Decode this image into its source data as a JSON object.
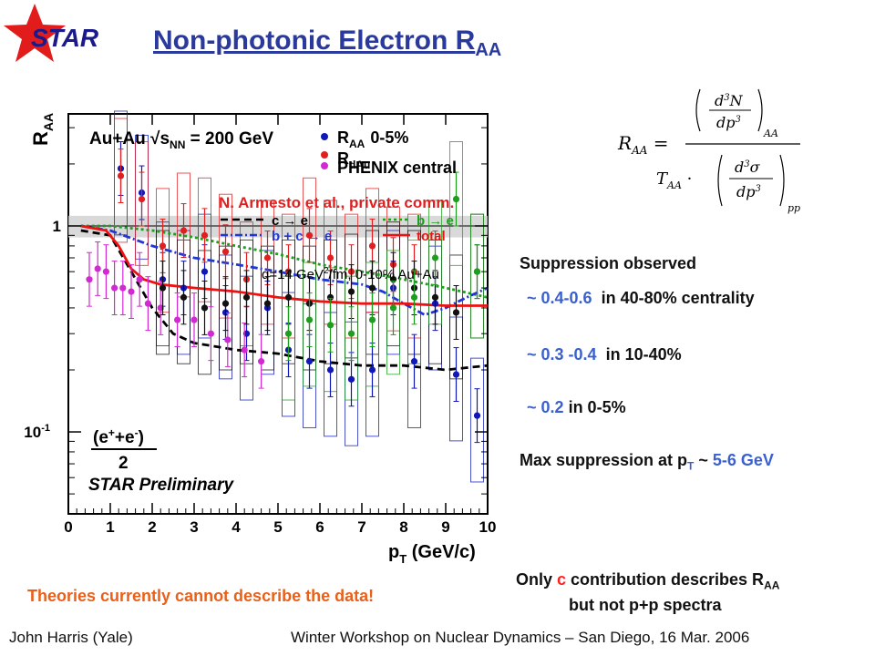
{
  "slide": {
    "logo": "STAR",
    "title": "Non-photonic Electron R",
    "title_sub": "AA"
  },
  "formula": {
    "lhs": "R",
    "lhs_sub": "AA",
    "num_d": "d",
    "num_sup": "3",
    "num_var": "N",
    "num_dp": "dp",
    "num_dp_sup": "3",
    "num_sub": "AA",
    "den_T": "T",
    "den_T_sub": "AA",
    "den_d": "d",
    "den_sup": "3",
    "den_var": "σ",
    "den_dp": "dp",
    "den_dp_sup": "3",
    "den_sub": "pp"
  },
  "notes": {
    "suppression": "Suppression observed",
    "line1_value": "~ 0.4-0.6",
    "line1_text": "in 40-80% centrality",
    "line2_value": "~ 0.3 -0.4",
    "line2_text": "in 10-40%",
    "line3_value": "~ 0.2",
    "line3_text": "in 0-5%",
    "max_prefix": "Max suppression at p",
    "max_sub": "T",
    "max_mid": " ~ ",
    "max_value": "5-6 GeV",
    "only_prefix": "Only ",
    "only_c": "c",
    "only_suffix": " contribution describes R",
    "only_sub": "AA",
    "only_line2": "but not p+p spectra",
    "theory": "Theories currently cannot describe the data!"
  },
  "footer": {
    "left": "John Harris (Yale)",
    "right": "Winter Workshop on Nuclear Dynamics – San Diego, 16 Mar. 2006"
  },
  "chart_data": {
    "type": "scatter",
    "y_scale": "log",
    "xlim": [
      0,
      10
    ],
    "ylim": [
      0.04,
      3.5
    ],
    "x_ticks": [
      "0",
      "1",
      "2",
      "3",
      "4",
      "5",
      "6",
      "7",
      "8",
      "9",
      "10"
    ],
    "y_ticks": [
      {
        "v": 1,
        "label": "1"
      },
      {
        "v": 0.1,
        "label": "10",
        "sup": "-1"
      }
    ],
    "ylabel": "R",
    "ylabel_sub": "AA",
    "xlabel": "p",
    "xlabel_sub": "T",
    "xlabel_unit": " (GeV/c)",
    "annotations": {
      "system": "Au+Au  √s",
      "system_sub": "NN",
      "system_tail": " = 200 GeV",
      "theory_ref": "N. Armesto et al., private comm.",
      "qhat": "q=14 GeV",
      "qhat_sup": "2",
      "qhat_tail": "/fm, 0-10% Au+Au",
      "ratio_num": "(e",
      "ratio_den": "2",
      "preliminary": "STAR Preliminary"
    },
    "legend": [
      {
        "label": "R",
        "sub": "AA",
        "extra": "0-5%",
        "color": "#1018b8"
      },
      {
        "label": "R",
        "sub": "dAu",
        "extra": "",
        "color": "#e02020"
      },
      {
        "label": "PHENIX central",
        "sub": "",
        "extra": "",
        "color": "#d22ad2"
      },
      {
        "label": "c → e",
        "color": "#000000",
        "dash": "8,5"
      },
      {
        "label": "b → e",
        "color": "#1e9e1e",
        "dash": "3,3"
      },
      {
        "label": "b + c → e",
        "color": "#2036d6",
        "dash": "8,3,2,3"
      },
      {
        "label": "total",
        "color": "#ee1111",
        "dash": ""
      }
    ],
    "series": [
      {
        "name": "R_AA 0-5%",
        "color": "#1018b8",
        "x": [
          1.25,
          1.75,
          2.25,
          2.75,
          3.25,
          3.75,
          4.25,
          4.75,
          5.25,
          5.75,
          6.25,
          6.75,
          7.25,
          7.75,
          8.25,
          8.75,
          9.25,
          9.75
        ],
        "y": [
          1.9,
          1.45,
          0.55,
          0.5,
          0.6,
          0.38,
          0.3,
          0.4,
          0.25,
          0.22,
          0.2,
          0.18,
          0.2,
          0.5,
          0.22,
          0.42,
          0.19,
          0.12
        ]
      },
      {
        "name": "R_dAu",
        "color": "#e02020",
        "x": [
          1.25,
          1.75,
          2.25,
          2.75,
          3.25,
          3.75,
          4.25,
          4.75,
          5.25,
          5.75,
          6.25,
          6.75,
          7.25,
          7.75,
          8.25
        ],
        "y": [
          1.75,
          1.35,
          0.8,
          0.95,
          0.9,
          0.75,
          0.55,
          0.7,
          0.6,
          0.9,
          0.7,
          0.6,
          0.8,
          0.65,
          0.6
        ]
      },
      {
        "name": "PHENIX central",
        "color": "#d22ad2",
        "x": [
          0.5,
          0.7,
          0.9,
          1.1,
          1.3,
          1.5,
          1.7,
          1.9,
          2.2,
          2.6,
          3.0,
          3.4,
          3.8,
          4.2,
          4.6
        ],
        "y": [
          0.55,
          0.62,
          0.6,
          0.5,
          0.5,
          0.48,
          0.55,
          0.42,
          0.4,
          0.35,
          0.35,
          0.3,
          0.28,
          0.25,
          0.22
        ]
      },
      {
        "name": "R_AA 40-80%",
        "color": "#111111",
        "x": [
          2.25,
          2.75,
          3.25,
          3.75,
          4.25,
          4.75,
          5.25,
          5.75,
          6.25,
          6.75,
          7.25,
          7.75,
          8.25,
          8.75,
          9.25,
          9.75
        ],
        "y": [
          0.5,
          0.45,
          0.4,
          0.42,
          0.45,
          0.42,
          0.45,
          0.42,
          0.45,
          0.48,
          0.5,
          0.55,
          0.5,
          0.45,
          0.38,
          0.6
        ]
      },
      {
        "name": "R_AA 10-40%",
        "color": "#1e9e1e",
        "x": [
          5.25,
          5.75,
          6.25,
          6.75,
          7.25,
          7.75,
          8.25,
          8.75,
          9.25,
          9.75
        ],
        "y": [
          0.3,
          0.35,
          0.33,
          0.3,
          0.35,
          0.4,
          0.45,
          0.7,
          1.35,
          0.6
        ]
      }
    ],
    "curves": [
      {
        "name": "c → e",
        "color": "#000000",
        "dash": "8,5",
        "x": [
          0.3,
          1.0,
          1.5,
          2.0,
          2.5,
          3.0,
          3.5,
          4.0,
          5.0,
          6.0,
          7.0,
          8.0,
          9.0,
          10.0
        ],
        "y": [
          0.95,
          0.9,
          0.6,
          0.4,
          0.3,
          0.27,
          0.26,
          0.25,
          0.24,
          0.22,
          0.21,
          0.21,
          0.2,
          0.21
        ]
      },
      {
        "name": "b → e",
        "color": "#1e9e1e",
        "dash": "3,3",
        "x": [
          0.3,
          1.0,
          2.0,
          3.0,
          4.0,
          5.0,
          6.0,
          7.0,
          8.0,
          9.0,
          10.0
        ],
        "y": [
          1.0,
          1.0,
          0.95,
          0.88,
          0.8,
          0.73,
          0.65,
          0.6,
          0.55,
          0.5,
          0.45
        ]
      },
      {
        "name": "b + c → e",
        "color": "#2036d6",
        "dash": "8,3,2,3",
        "x": [
          0.3,
          1.0,
          2.0,
          3.0,
          4.0,
          5.0,
          6.0,
          7.0,
          7.5,
          8.0,
          8.5,
          9.0,
          9.5,
          10.0
        ],
        "y": [
          1.0,
          0.95,
          0.8,
          0.7,
          0.65,
          0.6,
          0.55,
          0.52,
          0.48,
          0.42,
          0.37,
          0.4,
          0.45,
          0.5
        ]
      },
      {
        "name": "total",
        "color": "#ee1111",
        "dash": "",
        "x": [
          0.3,
          0.9,
          1.2,
          1.5,
          1.8,
          2.2,
          3.0,
          4.0,
          5.0,
          6.0,
          7.0,
          8.0,
          9.0,
          10.0
        ],
        "y": [
          1.0,
          0.95,
          0.8,
          0.62,
          0.55,
          0.52,
          0.5,
          0.48,
          0.45,
          0.43,
          0.42,
          0.42,
          0.41,
          0.41
        ]
      }
    ]
  }
}
